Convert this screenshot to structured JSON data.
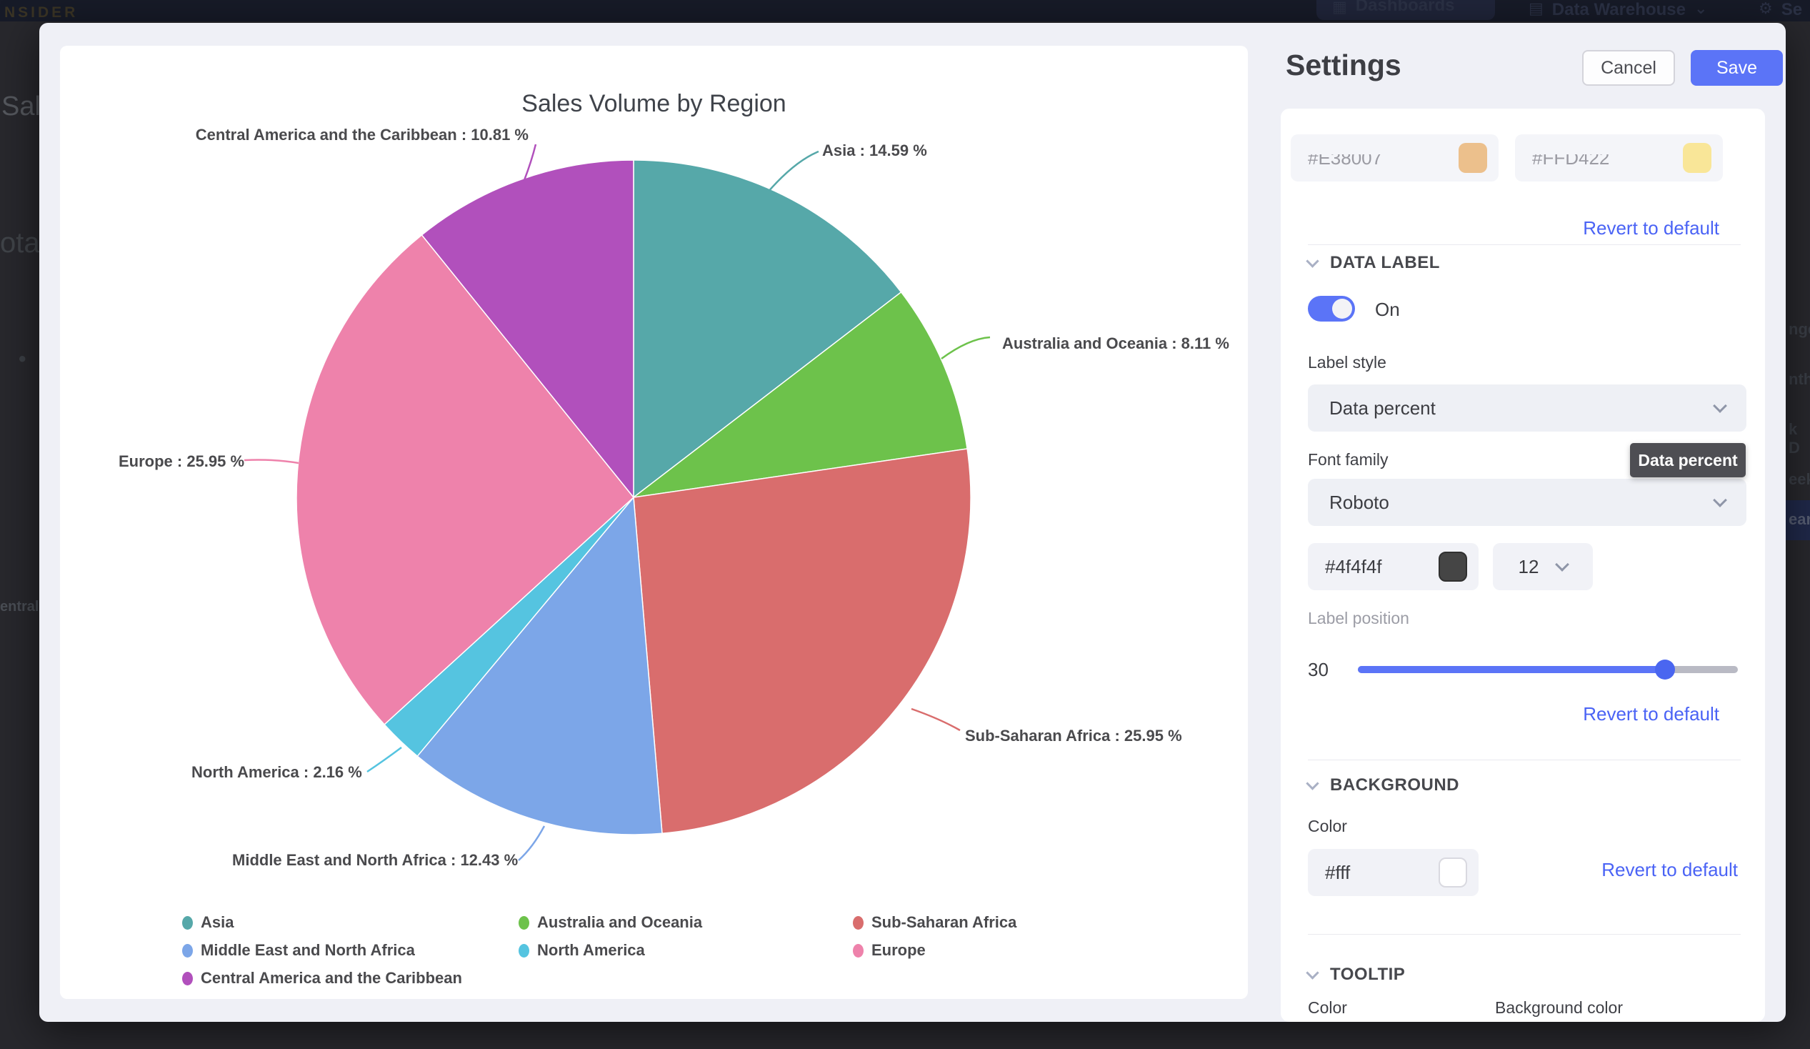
{
  "background": {
    "logo": "NSIDER",
    "nav": {
      "dashboards": "Dashboards",
      "data_warehouse": "Data Warehouse",
      "settings_partial": "Se"
    },
    "left_fragments": {
      "f1": "Sal",
      "f2": "ota",
      "f3": "•",
      "f4": "entral"
    },
    "right_fragments": {
      "f1": "nge",
      "f2": "nth",
      "f3": "k D",
      "f4": "eek",
      "f5": "ear"
    }
  },
  "chart_data": {
    "type": "pie",
    "title": "Sales Volume by Region",
    "unit": "%",
    "legend_position": "bottom",
    "start_angle": "top, clockwise",
    "series": [
      {
        "label": "Asia",
        "value": 14.59,
        "color": "#56a8a9"
      },
      {
        "label": "Australia and Oceania",
        "value": 8.11,
        "color": "#6dc24b"
      },
      {
        "label": "Sub-Saharan Africa",
        "value": 25.95,
        "color": "#d96d6d"
      },
      {
        "label": "Middle East and North Africa",
        "value": 12.43,
        "color": "#7ca6e8"
      },
      {
        "label": "North America",
        "value": 2.16,
        "color": "#55c4e0"
      },
      {
        "label": "Europe",
        "value": 25.95,
        "color": "#ee82ab"
      },
      {
        "label": "Central America and the Caribbean",
        "value": 10.81,
        "color": "#b150bc"
      }
    ],
    "callouts": [
      "Asia : 14.59 %",
      "Australia and Oceania : 8.11 %",
      "Sub-Saharan Africa : 25.95 %",
      "Middle East and North Africa : 12.43 %",
      "North America : 2.16 %",
      "Europe : 25.95 %",
      "Central America and the Caribbean : 10.81 %"
    ]
  },
  "settings": {
    "title": "Settings",
    "cancel_label": "Cancel",
    "save_label": "Save",
    "revert_label": "Revert to default",
    "series_colors": {
      "color1": "#E38007",
      "color2": "#FFD422"
    },
    "data_label": {
      "section": "DATA LABEL",
      "toggle_state": "On",
      "label_style_label": "Label style",
      "label_style_value": "Data percent",
      "style_tooltip": "Data percent",
      "font_family_label": "Font family",
      "font_family_value": "Roboto",
      "font_color": "#4f4f4f",
      "font_size": "12",
      "label_position_label": "Label position",
      "label_position_value": "30"
    },
    "background_section": {
      "section": "BACKGROUND",
      "color_label": "Color",
      "color_value": "#fff"
    },
    "tooltip_section": {
      "section": "TOOLTIP",
      "color_label": "Color",
      "bg_color_label": "Background color"
    },
    "accent_color": "#5b74f7",
    "link_color": "#4a63f5"
  }
}
